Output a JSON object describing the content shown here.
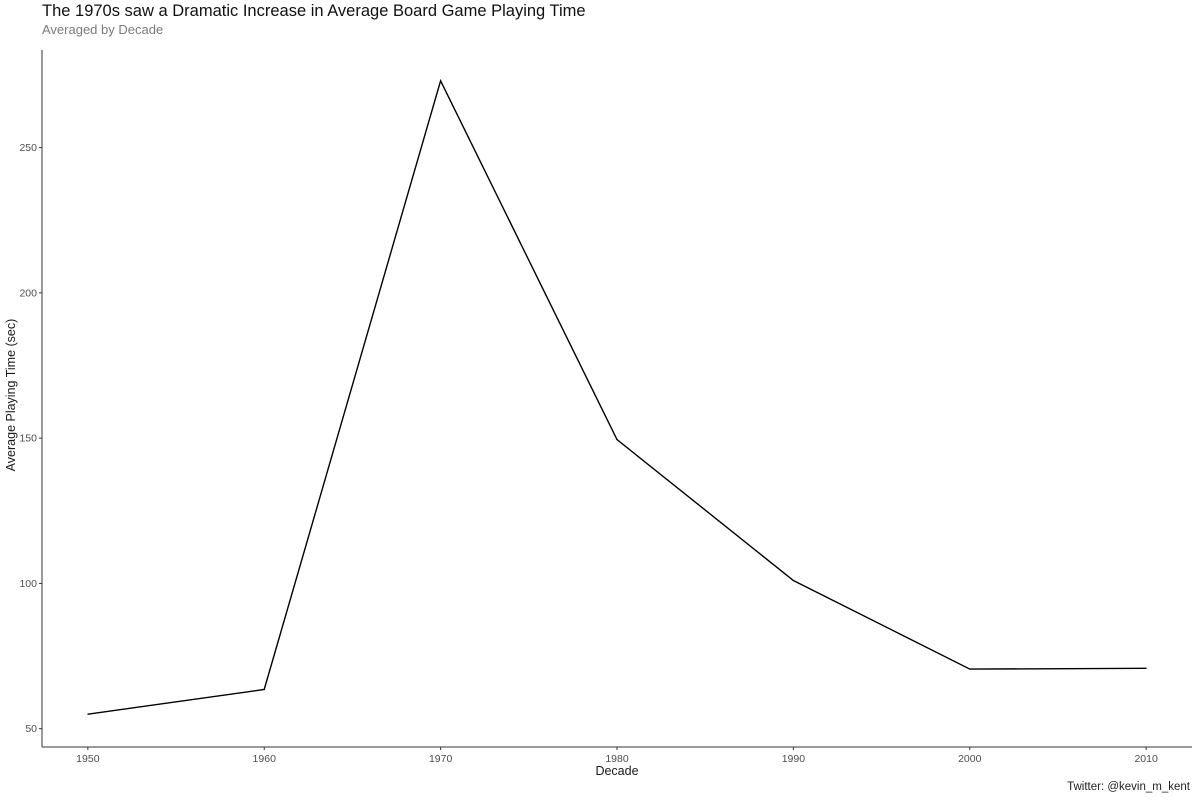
{
  "chart_data": {
    "type": "line",
    "title": "The 1970s saw a Dramatic Increase in Average Board Game Playing Time",
    "subtitle": "Averaged by Decade",
    "xlabel": "Decade",
    "ylabel": "Average Playing Time (sec)",
    "caption": "Twitter: @kevin_m_kent",
    "x": [
      1950,
      1960,
      1970,
      1980,
      1990,
      2000,
      2010
    ],
    "series": [
      {
        "values": [
          55,
          63.5,
          273,
          149.5,
          101,
          70.5,
          70.8
        ]
      }
    ],
    "xticks": [
      1950,
      1960,
      1970,
      1980,
      1990,
      2000,
      2010
    ],
    "yticks": [
      50,
      100,
      150,
      200,
      250
    ],
    "xlim": [
      1947.4,
      2012.6
    ],
    "ylim": [
      43.7,
      283.6
    ],
    "grid": false,
    "legend": "none",
    "colors": {
      "line": "#000000",
      "axis": "#333333"
    }
  }
}
